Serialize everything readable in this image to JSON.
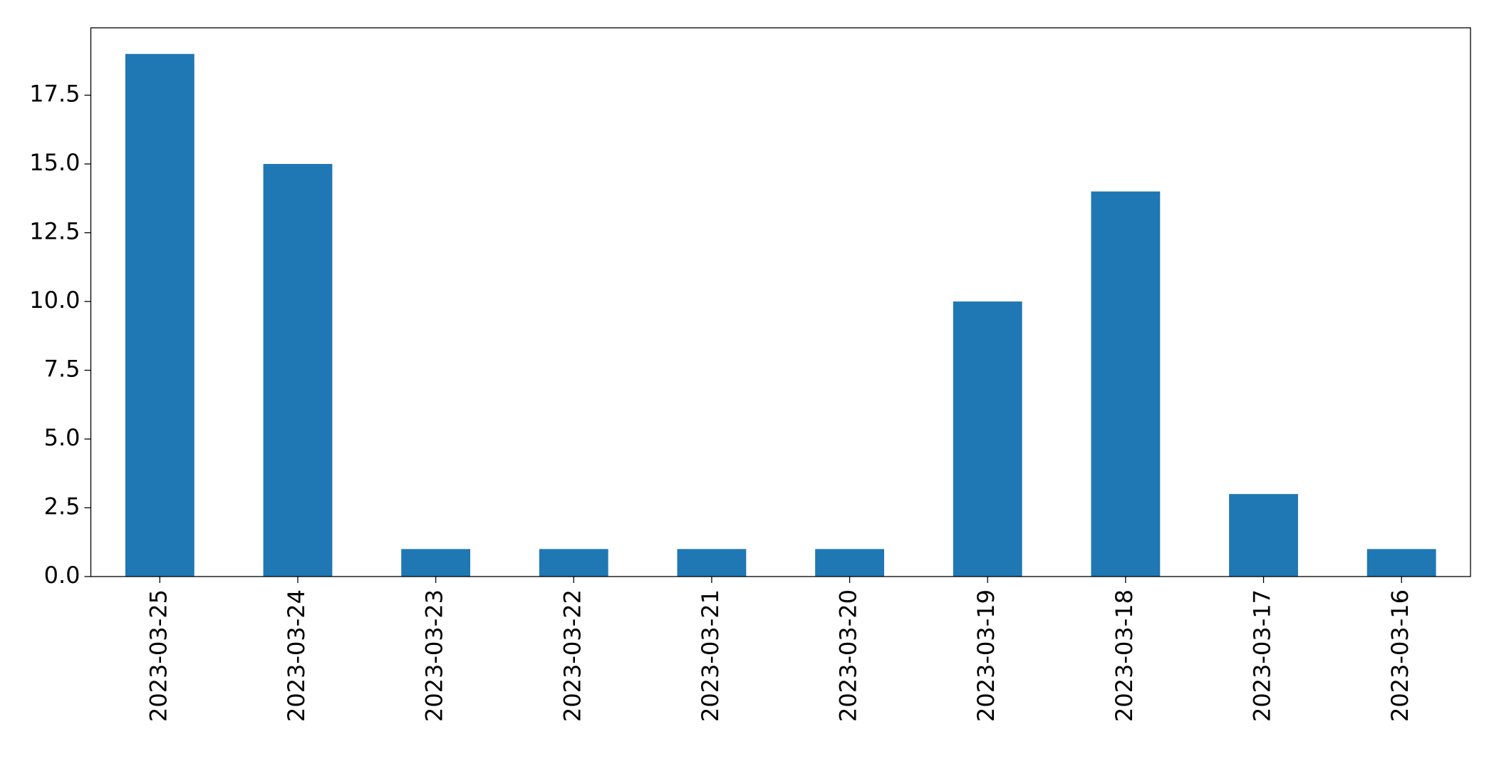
{
  "chart_data": {
    "type": "bar",
    "categories": [
      "2023-03-25",
      "2023-03-24",
      "2023-03-23",
      "2023-03-22",
      "2023-03-21",
      "2023-03-20",
      "2023-03-19",
      "2023-03-18",
      "2023-03-17",
      "2023-03-16"
    ],
    "values": [
      19,
      15,
      1,
      1,
      1,
      1,
      10,
      14,
      3,
      1
    ],
    "color": "#1f77b4",
    "ylim": [
      0,
      19.95
    ],
    "yticks": [
      {
        "value": 0,
        "label": "0.0"
      },
      2.5,
      {
        "value": 5,
        "label": "5.0"
      },
      7.5,
      {
        "value": 10,
        "label": "10.0"
      },
      12.5,
      {
        "value": 15,
        "label": "15.0"
      },
      17.5
    ],
    "grid": false
  }
}
